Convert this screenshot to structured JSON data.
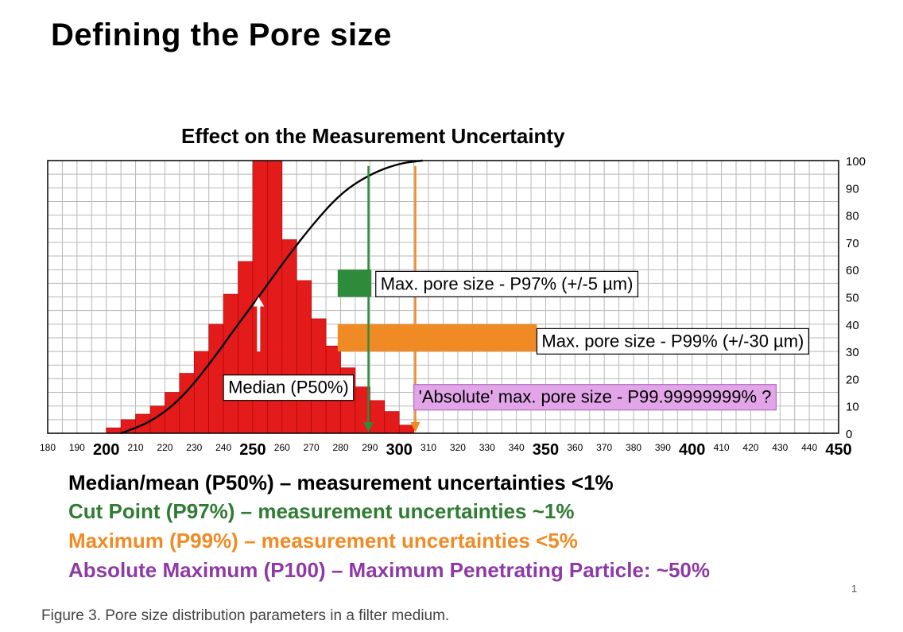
{
  "page": {
    "title": "Defining the Pore size",
    "page_number": "1",
    "caption": "Figure 3. Pore size distribution parameters in a filter medium."
  },
  "legend_lines": [
    {
      "text": "Median/mean (P50%) – measurement uncertainties <1%",
      "color": "#000000"
    },
    {
      "text": "Cut Point (P97%) – measurement uncertainties ~1%",
      "color": "#2e7d32"
    },
    {
      "text": "Maximum (P99%) – measurement uncertainties <5%",
      "color": "#f08a24"
    },
    {
      "text": "Absolute Maximum (P100) – Maximum Penetrating Particle: ~50%",
      "color": "#8e3aa5"
    }
  ],
  "chart_data": {
    "type": "bar",
    "title": "Effect on the Measurement Uncertainty",
    "x_range": [
      180,
      450
    ],
    "y_range": [
      0,
      100
    ],
    "x_tick_labels": [
      {
        "v": 180,
        "t": "180",
        "major": false
      },
      {
        "v": 190,
        "t": "190",
        "major": false
      },
      {
        "v": 200,
        "t": "200",
        "major": true
      },
      {
        "v": 210,
        "t": "210",
        "major": false
      },
      {
        "v": 220,
        "t": "220",
        "major": false
      },
      {
        "v": 230,
        "t": "230",
        "major": false
      },
      {
        "v": 240,
        "t": "240",
        "major": false
      },
      {
        "v": 250,
        "t": "250",
        "major": true
      },
      {
        "v": 260,
        "t": "260",
        "major": false
      },
      {
        "v": 270,
        "t": "270",
        "major": false
      },
      {
        "v": 280,
        "t": "280",
        "major": false
      },
      {
        "v": 290,
        "t": "290",
        "major": false
      },
      {
        "v": 300,
        "t": "300",
        "major": true
      },
      {
        "v": 310,
        "t": "310",
        "major": false
      },
      {
        "v": 320,
        "t": "320",
        "major": false
      },
      {
        "v": 330,
        "t": "330",
        "major": false
      },
      {
        "v": 340,
        "t": "340",
        "major": false
      },
      {
        "v": 350,
        "t": "350",
        "major": true
      },
      {
        "v": 360,
        "t": "360",
        "major": false
      },
      {
        "v": 370,
        "t": "370",
        "major": false
      },
      {
        "v": 380,
        "t": "380",
        "major": false
      },
      {
        "v": 390,
        "t": "390",
        "major": false
      },
      {
        "v": 400,
        "t": "400",
        "major": true
      },
      {
        "v": 410,
        "t": "410",
        "major": false
      },
      {
        "v": 420,
        "t": "420",
        "major": false
      },
      {
        "v": 430,
        "t": "430",
        "major": false
      },
      {
        "v": 440,
        "t": "440",
        "major": false
      },
      {
        "v": 450,
        "t": "450",
        "major": true
      }
    ],
    "y_tick_labels": [
      "0",
      "10",
      "20",
      "30",
      "40",
      "50",
      "60",
      "70",
      "80",
      "90",
      "100"
    ],
    "bin_width": 5,
    "bars": [
      {
        "x0": 200,
        "value": 2
      },
      {
        "x0": 205,
        "value": 5
      },
      {
        "x0": 210,
        "value": 7
      },
      {
        "x0": 215,
        "value": 10
      },
      {
        "x0": 220,
        "value": 15
      },
      {
        "x0": 225,
        "value": 22
      },
      {
        "x0": 230,
        "value": 30
      },
      {
        "x0": 235,
        "value": 40
      },
      {
        "x0": 240,
        "value": 51
      },
      {
        "x0": 245,
        "value": 63
      },
      {
        "x0": 250,
        "value": 100
      },
      {
        "x0": 255,
        "value": 100
      },
      {
        "x0": 260,
        "value": 71
      },
      {
        "x0": 265,
        "value": 56
      },
      {
        "x0": 270,
        "value": 42
      },
      {
        "x0": 275,
        "value": 32
      },
      {
        "x0": 280,
        "value": 24
      },
      {
        "x0": 285,
        "value": 17
      },
      {
        "x0": 290,
        "value": 12
      },
      {
        "x0": 295,
        "value": 8
      },
      {
        "x0": 300,
        "value": 3
      }
    ],
    "cumulative_curve": [
      {
        "x": 205,
        "y": 0
      },
      {
        "x": 215,
        "y": 4
      },
      {
        "x": 225,
        "y": 12
      },
      {
        "x": 235,
        "y": 25
      },
      {
        "x": 245,
        "y": 40
      },
      {
        "x": 252,
        "y": 50
      },
      {
        "x": 260,
        "y": 62
      },
      {
        "x": 270,
        "y": 76
      },
      {
        "x": 280,
        "y": 88
      },
      {
        "x": 290,
        "y": 95
      },
      {
        "x": 300,
        "y": 99
      },
      {
        "x": 308,
        "y": 100
      }
    ],
    "median_marker": {
      "x": 252,
      "y_from": 30,
      "y_to": 50
    },
    "vertical_lines": [
      {
        "x": 289.5,
        "color": "#2e8b3a",
        "y_top": 98
      },
      {
        "x": 305.5,
        "color": "#f08a24",
        "y_top": 98
      }
    ],
    "annotations": [
      {
        "text": "Median (P50%)",
        "x": 240,
        "y": 17,
        "color": "#000000",
        "fill": "#ffffff",
        "border": "#000000"
      },
      {
        "text": "Max. pore size - P97% (+/-5 µm)",
        "x": 292,
        "y": 55,
        "color": "#000000",
        "fill": "#ffffff",
        "border": "#000000"
      },
      {
        "text": "Max. pore size - P99% (+/-30 µm)",
        "x": 347,
        "y": 34,
        "color": "#000000",
        "fill": "#ffffff",
        "border": "#000000"
      },
      {
        "text": "'Absolute' max. pore size - P99.99999999% ?",
        "x": 305,
        "y": 13.5,
        "color": "#000000",
        "fill": "#e2a6e8",
        "border": "#b46ac0"
      }
    ],
    "marker_boxes": [
      {
        "name": "p97",
        "color": "#2e8b3a",
        "x_from": 279,
        "x_to": 290.5,
        "y_from": 50,
        "y_to": 60
      },
      {
        "name": "p99",
        "color": "#f08a24",
        "x_from": 279,
        "x_to": 347,
        "y_from": 30,
        "y_to": 40
      }
    ],
    "colors": {
      "bars": "#e41b1b",
      "bar_edge": "#a80000",
      "grid": "#b8b8b8",
      "curve": "#000000"
    }
  }
}
